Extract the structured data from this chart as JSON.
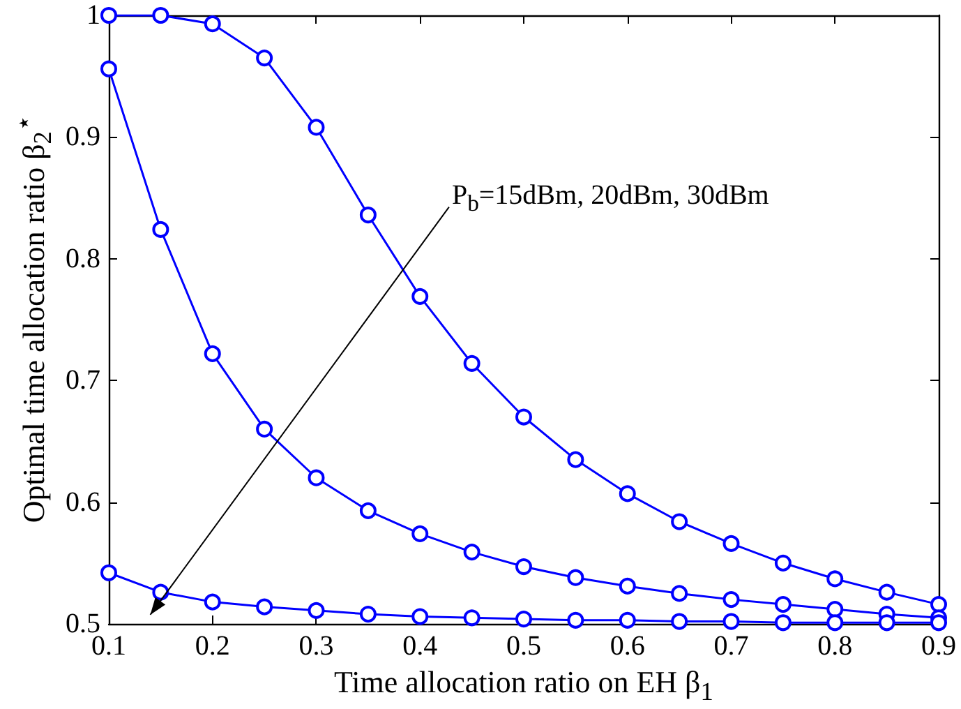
{
  "chart_data": {
    "type": "line",
    "xlabel": "Time allocation ratio on EH β$_{1}$",
    "ylabel": "Optimal time allocation ratio β$_{2}$$^{⋆}$",
    "x": [
      0.1,
      0.15,
      0.2,
      0.25,
      0.3,
      0.35,
      0.4,
      0.45,
      0.5,
      0.55,
      0.6,
      0.65,
      0.7,
      0.75,
      0.8,
      0.85,
      0.9
    ],
    "series": [
      {
        "color": "#0000ff",
        "values": [
          1.0,
          1.0,
          0.993,
          0.965,
          0.908,
          0.836,
          0.769,
          0.714,
          0.67,
          0.635,
          0.607,
          0.584,
          0.566,
          0.55,
          0.537,
          0.526,
          0.516
        ]
      },
      {
        "color": "#0000ff",
        "values": [
          0.956,
          0.824,
          0.722,
          0.66,
          0.62,
          0.593,
          0.574,
          0.559,
          0.547,
          0.538,
          0.531,
          0.525,
          0.52,
          0.516,
          0.512,
          0.508,
          0.505
        ]
      },
      {
        "color": "#0000ff",
        "values": [
          0.542,
          0.526,
          0.518,
          0.514,
          0.511,
          0.508,
          0.506,
          0.505,
          0.504,
          0.503,
          0.503,
          0.502,
          0.502,
          0.501,
          0.501,
          0.501,
          0.501
        ]
      }
    ],
    "xlim": [
      0.1,
      0.9
    ],
    "xticks": [
      0.1,
      0.2,
      0.3,
      0.4,
      0.5,
      0.6,
      0.7,
      0.8,
      0.9
    ],
    "ylim": [
      0.5,
      1
    ],
    "yticks": [
      0.5,
      0.6,
      0.7,
      0.8,
      0.9,
      1
    ],
    "marker": "circle",
    "line_style": "solid",
    "grid": false,
    "annotations": [
      "P$_{b}$=15dBm, 20dBm, 30dBm"
    ]
  }
}
